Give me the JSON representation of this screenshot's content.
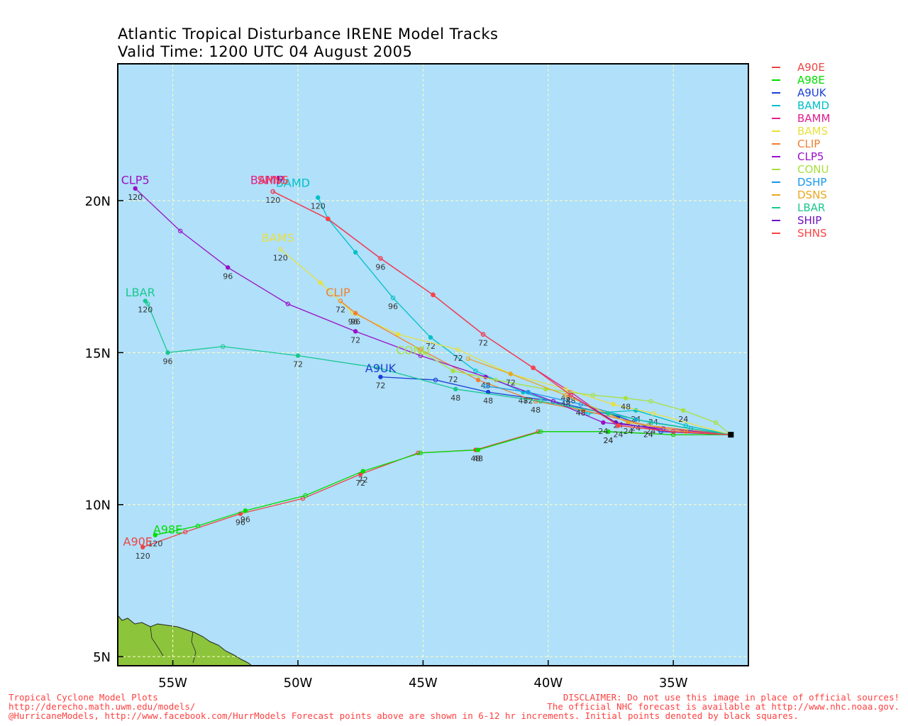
{
  "title_line1": "Atlantic Tropical Disturbance IRENE Model Tracks",
  "title_line2": "Valid Time: 1200 UTC 04 August 2005",
  "axes": {
    "lon_ticks": [
      "55W",
      "50W",
      "45W",
      "40W",
      "35W"
    ],
    "lon_values": [
      -55,
      -50,
      -45,
      -40,
      -35
    ],
    "lat_ticks": [
      "20N",
      "15N",
      "10N",
      "5N"
    ],
    "lat_values": [
      20,
      15,
      10,
      5
    ],
    "lon_range": [
      -57.2,
      -32.0
    ],
    "lat_range": [
      4.7,
      24.5
    ]
  },
  "colors": {
    "ocean": "#b0e0fa",
    "land": "#8cc43c",
    "grid": "#ffffc0",
    "footer": "#ff4040"
  },
  "initial_point": {
    "lon": -32.7,
    "lat": 12.3
  },
  "models": [
    {
      "name": "A90E",
      "color": "#ee4444",
      "points": [
        [
          -32.7,
          12.3
        ],
        [
          -35,
          12.3
        ],
        [
          -37.6,
          12.4
        ],
        [
          -40.4,
          12.4
        ],
        [
          -42.9,
          11.8
        ],
        [
          -45.2,
          11.7
        ],
        [
          -47.5,
          11.0
        ],
        [
          -49.8,
          10.2
        ],
        [
          -52.3,
          9.7
        ],
        [
          -54.5,
          9.1
        ],
        [
          -56.2,
          8.6
        ]
      ],
      "labels": [
        {
          "text": "24",
          "i": 2
        },
        {
          "text": "48",
          "i": 4
        },
        {
          "text": "72",
          "i": 6
        },
        {
          "text": "96",
          "i": 8
        },
        {
          "text": "120",
          "i": 10
        }
      ],
      "name_label": {
        "lon": -56.4,
        "lat": 8.65
      }
    },
    {
      "name": "A98E",
      "color": "#00dd00",
      "points": [
        [
          -32.7,
          12.3
        ],
        [
          -35,
          12.3
        ],
        [
          -37.6,
          12.4
        ],
        [
          -40.3,
          12.4
        ],
        [
          -42.8,
          11.8
        ],
        [
          -45.1,
          11.7
        ],
        [
          -47.4,
          11.1
        ],
        [
          -49.7,
          10.3
        ],
        [
          -52.1,
          9.8
        ],
        [
          -54,
          9.3
        ],
        [
          -55.7,
          9.0
        ]
      ],
      "labels": [
        {
          "text": "24",
          "i": 2
        },
        {
          "text": "48",
          "i": 4
        },
        {
          "text": "72",
          "i": 6
        },
        {
          "text": "96",
          "i": 8
        },
        {
          "text": "120",
          "i": 10
        }
      ],
      "name_label": {
        "lon": -55.2,
        "lat": 9.05
      }
    },
    {
      "name": "A9UK",
      "color": "#1a3fd6",
      "points": [
        [
          -32.7,
          12.3
        ],
        [
          -35.5,
          12.4
        ],
        [
          -37.2,
          12.9
        ],
        [
          -39.8,
          13.4
        ],
        [
          -42.4,
          13.7
        ],
        [
          -44.5,
          14.1
        ],
        [
          -46.7,
          14.2
        ]
      ],
      "labels": [
        {
          "text": "24",
          "i": 2
        },
        {
          "text": "48",
          "i": 4
        },
        {
          "text": "72",
          "i": 6
        }
      ],
      "name_label": {
        "lon": -46.7,
        "lat": 14.35
      }
    },
    {
      "name": "BAMD",
      "color": "#00c0c8",
      "points": [
        [
          -32.7,
          12.3
        ],
        [
          -34.5,
          12.6
        ],
        [
          -36.5,
          13.1
        ],
        [
          -38.4,
          13.0
        ],
        [
          -41,
          13.7
        ],
        [
          -42.9,
          14.4
        ],
        [
          -44.7,
          15.5
        ],
        [
          -46.2,
          16.8
        ],
        [
          -47.7,
          18.3
        ],
        [
          -48.8,
          19.4
        ],
        [
          -49.2,
          20.1
        ]
      ],
      "labels": [
        {
          "text": "24",
          "i": 2
        },
        {
          "text": "48",
          "i": 4
        },
        {
          "text": "72",
          "i": 6
        },
        {
          "text": "96",
          "i": 7
        },
        {
          "text": "120",
          "i": 10
        }
      ],
      "name_label": {
        "lon": -50.2,
        "lat": 20.45
      }
    },
    {
      "name": "BAMM",
      "color": "#e0208c",
      "points": [
        [
          -32.7,
          12.3
        ],
        [
          -35,
          12.4
        ],
        [
          -37.2,
          12.6
        ],
        [
          -39.1,
          13.7
        ],
        [
          -40.6,
          14.5
        ],
        [
          -42.6,
          15.6
        ],
        [
          -44.6,
          16.9
        ],
        [
          -46.7,
          18.1
        ],
        [
          -48.8,
          19.4
        ],
        [
          -51,
          20.3
        ]
      ],
      "labels": [
        {
          "text": "24",
          "i": 2
        },
        {
          "text": "48",
          "i": 3
        },
        {
          "text": "72",
          "i": 5
        },
        {
          "text": "96",
          "i": 7
        },
        {
          "text": "120",
          "i": 9
        }
      ],
      "name_label": {
        "lon": -51.2,
        "lat": 20.55
      }
    },
    {
      "name": "BAMS",
      "color": "#e8e040",
      "points": [
        [
          -32.7,
          12.3
        ],
        [
          -35.8,
          13.0
        ],
        [
          -37.4,
          13.3
        ],
        [
          -39.3,
          13.8
        ],
        [
          -41.5,
          14.3
        ],
        [
          -43.6,
          15.1
        ],
        [
          -46,
          15.6
        ],
        [
          -47.8,
          16.3
        ],
        [
          -49.1,
          17.3
        ],
        [
          -50.7,
          18.4
        ]
      ],
      "labels": [
        {
          "text": "24",
          "i": 1
        },
        {
          "text": "48",
          "i": 3
        },
        {
          "text": "72",
          "i": 5
        },
        {
          "text": "96",
          "i": 7
        },
        {
          "text": "120",
          "i": 9
        }
      ],
      "name_label": {
        "lon": -50.8,
        "lat": 18.65
      }
    },
    {
      "name": "CLIP",
      "color": "#f08030",
      "points": [
        [
          -32.7,
          12.3
        ],
        [
          -36,
          12.6
        ],
        [
          -38.6,
          13.1
        ],
        [
          -40.5,
          13.4
        ],
        [
          -42.8,
          14.1
        ],
        [
          -45.1,
          15.1
        ],
        [
          -47.7,
          16.3
        ],
        [
          -48.3,
          16.7
        ]
      ],
      "labels": [
        {
          "text": "24",
          "i": 1
        },
        {
          "text": "48",
          "i": 3
        },
        {
          "text": "72",
          "i": 7
        },
        {
          "text": "96",
          "i": 6
        }
      ],
      "name_label": {
        "lon": -48.4,
        "lat": 16.85
      }
    },
    {
      "name": "CLP5",
      "color": "#9a10c8",
      "points": [
        [
          -32.7,
          12.3
        ],
        [
          -35.4,
          12.5
        ],
        [
          -37.8,
          12.7
        ],
        [
          -39.8,
          13.4
        ],
        [
          -42.5,
          14.2
        ],
        [
          -45.1,
          14.9
        ],
        [
          -47.7,
          15.7
        ],
        [
          -50.4,
          16.6
        ],
        [
          -52.8,
          17.8
        ],
        [
          -54.7,
          19.0
        ],
        [
          -56.5,
          20.4
        ]
      ],
      "labels": [
        {
          "text": "24",
          "i": 2
        },
        {
          "text": "48",
          "i": 4
        },
        {
          "text": "72",
          "i": 6
        },
        {
          "text": "96",
          "i": 8
        },
        {
          "text": "120",
          "i": 10
        }
      ],
      "name_label": {
        "lon": -56.5,
        "lat": 20.55
      }
    },
    {
      "name": "CONU",
      "color": "#a8e040",
      "points": [
        [
          -32.7,
          12.3
        ],
        [
          -33.3,
          12.7
        ],
        [
          -34.6,
          13.1
        ],
        [
          -35.9,
          13.4
        ],
        [
          -36.9,
          13.5
        ],
        [
          -38.2,
          13.6
        ],
        [
          -40.1,
          13.8
        ],
        [
          -42.1,
          14.1
        ],
        [
          -43.8,
          14.4
        ],
        [
          -45,
          15.0
        ]
      ],
      "labels": [
        {
          "text": "24",
          "i": 2
        },
        {
          "text": "48",
          "i": 4
        },
        {
          "text": "72",
          "i": 8
        }
      ],
      "name_label": {
        "lon": -45.4,
        "lat": 14.95
      }
    },
    {
      "name": "DSHP",
      "color": "#1898e8",
      "points": [
        [
          -32.7,
          12.3
        ],
        [
          -34.3,
          12.5
        ],
        [
          -36.5,
          12.8
        ],
        [
          -38.7,
          13.3
        ],
        [
          -40.8,
          13.7
        ],
        [
          -42.5,
          13.9
        ]
      ],
      "labels": [
        {
          "text": "24",
          "i": 2
        },
        {
          "text": "48",
          "i": 3
        },
        {
          "text": "72",
          "i": 4
        }
      ],
      "name_label": null
    },
    {
      "name": "DSNS",
      "color": "#e8a820",
      "points": [
        [
          -32.7,
          12.3
        ],
        [
          -34.5,
          12.4
        ],
        [
          -36.8,
          12.7
        ],
        [
          -39.3,
          13.6
        ],
        [
          -41.5,
          14.3
        ],
        [
          -43.2,
          14.8
        ]
      ],
      "labels": [
        {
          "text": "24",
          "i": 2
        },
        {
          "text": "48",
          "i": 3
        },
        {
          "text": "72",
          "i": 4
        }
      ],
      "name_label": null
    },
    {
      "name": "LBAR",
      "color": "#18c890",
      "points": [
        [
          -32.7,
          12.3
        ],
        [
          -35.9,
          12.7
        ],
        [
          -37.6,
          13.0
        ],
        [
          -40.3,
          13.4
        ],
        [
          -43.7,
          13.8
        ],
        [
          -46.8,
          14.5
        ],
        [
          -50,
          14.9
        ],
        [
          -53,
          15.2
        ],
        [
          -55.2,
          15.0
        ],
        [
          -56,
          16.6
        ],
        [
          -56.1,
          16.7
        ]
      ],
      "labels": [
        {
          "text": "24",
          "i": 1
        },
        {
          "text": "48",
          "i": 4
        },
        {
          "text": "72",
          "i": 6
        },
        {
          "text": "96",
          "i": 8
        },
        {
          "text": "120",
          "i": 10
        }
      ],
      "name_label": {
        "lon": -56.3,
        "lat": 16.85
      }
    },
    {
      "name": "SHIP",
      "color": "#7010c0",
      "points": [
        [
          -32.7,
          12.3
        ],
        [
          -35,
          12.4
        ],
        [
          -37.3,
          12.7
        ],
        [
          -39.1,
          13.6
        ],
        [
          -40.6,
          14.5
        ],
        [
          -42.6,
          15.6
        ],
        [
          -44.6,
          16.9
        ],
        [
          -46.7,
          18.1
        ],
        [
          -48.8,
          19.4
        ],
        [
          -51,
          20.3
        ]
      ],
      "labels": [],
      "name_label": {
        "lon": -51.1,
        "lat": 20.55
      }
    },
    {
      "name": "SHNS",
      "color": "#ff4444",
      "points": [
        [
          -32.7,
          12.3
        ],
        [
          -35,
          12.4
        ],
        [
          -37.2,
          12.6
        ],
        [
          -39.1,
          13.6
        ],
        [
          -40.6,
          14.5
        ],
        [
          -42.6,
          15.6
        ],
        [
          -44.6,
          16.9
        ],
        [
          -46.7,
          18.1
        ],
        [
          -48.8,
          19.4
        ],
        [
          -51,
          20.3
        ]
      ],
      "labels": [],
      "name_label": {
        "lon": -51.0,
        "lat": 20.55
      }
    }
  ],
  "footer_left": [
    "Tropical Cyclone Model Plots",
    "http://derecho.math.uwm.edu/models/",
    "@HurricaneModels, http://www.facebook.com/HurrModels  Forecast points above are shown in 6-12 hr increments. Initial points denoted by black squares."
  ],
  "footer_right": [
    "DISCLAIMER: Do not use this image in place of official sources!",
    "The official NHC forecast is available at http://www.nhc.noaa.gov."
  ]
}
